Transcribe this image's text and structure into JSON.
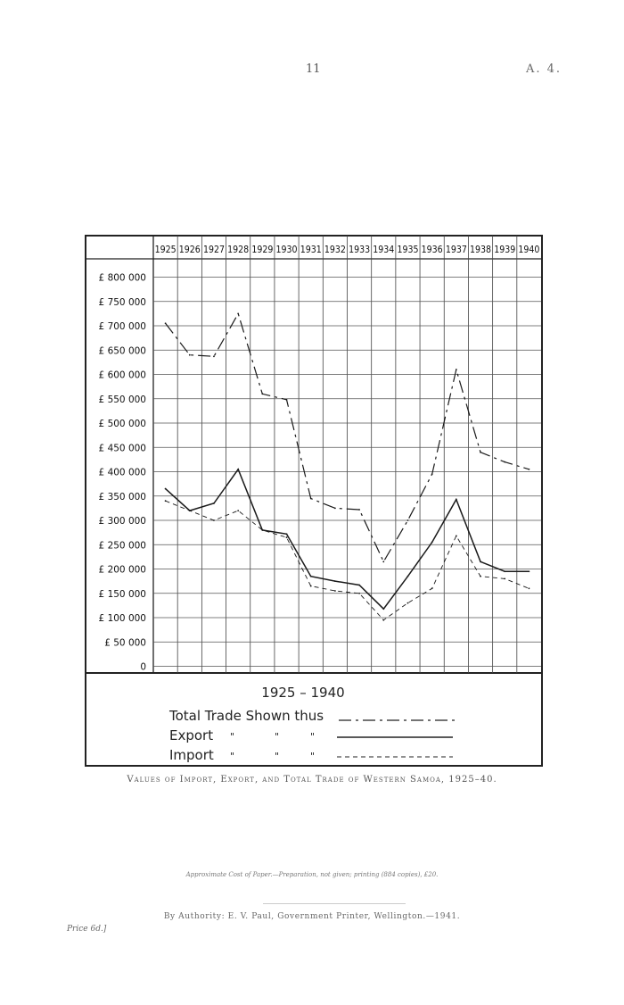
{
  "header": {
    "page_number": "11",
    "reference": "A. 4."
  },
  "caption": "Values of Import, Export, and Total Trade of Western Samoa, 1925–40.",
  "cost_note": "Approximate Cost of Paper.—Preparation, not given; printing (884 copies), £20.",
  "authority": "By Authority: E. V. Paul, Government Printer, Wellington.—1941.",
  "price": "Price 6d.]",
  "legend": {
    "title": "1925 – 1940",
    "total_label": "Total Trade Shown thus",
    "export_label": "Export",
    "import_label": "Import",
    "ditto": "\"",
    "ditto2": "\"",
    "ditto3": "\""
  },
  "chart_data": {
    "type": "line",
    "x": [
      "1925",
      "1926",
      "1927",
      "1928",
      "1929",
      "1930",
      "1931",
      "1932",
      "1933",
      "1934",
      "1935",
      "1936",
      "1937",
      "1938",
      "1939",
      "1940"
    ],
    "y_ticks": [
      "£ 800 000",
      "£ 750 000",
      "£ 700 000",
      "£ 650 000",
      "£ 600 000",
      "£ 550 000",
      "£ 500 000",
      "£ 450 000",
      "£ 400 000",
      "£ 350 000",
      "£ 300 000",
      "£ 250 000",
      "£ 200 000",
      "£ 150 000",
      "£ 100 000",
      "£ 50 000",
      "0"
    ],
    "ylim": [
      0,
      800000
    ],
    "series": [
      {
        "name": "Total Trade",
        "style": "dash-dot",
        "values": [
          705000,
          640000,
          637000,
          725000,
          560000,
          548000,
          345000,
          325000,
          322000,
          215000,
          300000,
          395000,
          610000,
          440000,
          420000,
          405000
        ]
      },
      {
        "name": "Export",
        "style": "solid",
        "values": [
          365000,
          320000,
          335000,
          405000,
          280000,
          272000,
          185000,
          175000,
          167000,
          118000,
          185000,
          255000,
          343000,
          215000,
          195000,
          195000
        ]
      },
      {
        "name": "Import",
        "style": "dashed",
        "values": [
          340000,
          320000,
          300000,
          320000,
          280000,
          265000,
          165000,
          155000,
          150000,
          95000,
          130000,
          160000,
          268000,
          185000,
          180000,
          160000
        ]
      }
    ],
    "grid": true,
    "legend_position": "bottom"
  }
}
